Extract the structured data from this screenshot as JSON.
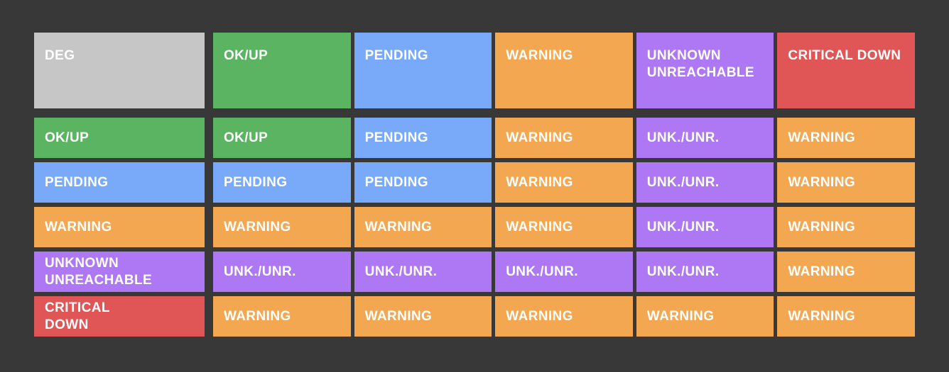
{
  "colors": {
    "background": "#383838",
    "deg_header": "#c6c6c6",
    "ok_up": "#5bb461",
    "pending": "#79aafa",
    "warning": "#f4a751",
    "unknown_unreachable": "#ae78f5",
    "critical_down": "#e05555",
    "text": "#ffffff"
  },
  "matrix": {
    "corner": {
      "label": "DEG",
      "state": "deg"
    },
    "column_headers": [
      {
        "label": "OK/UP",
        "state": "ok"
      },
      {
        "label": "PENDING",
        "state": "pending"
      },
      {
        "label": "WARNING",
        "state": "warning"
      },
      {
        "label": "UNKNOWN\nUNREACHABLE",
        "state": "unknown"
      },
      {
        "label": "CRITICAL DOWN",
        "state": "critical"
      }
    ],
    "rows": [
      {
        "header": {
          "label": "OK/UP",
          "state": "ok"
        },
        "cells": [
          {
            "label": "OK/UP",
            "state": "ok"
          },
          {
            "label": "PENDING",
            "state": "pending"
          },
          {
            "label": "WARNING",
            "state": "warning"
          },
          {
            "label": "UNK./UNR.",
            "state": "unknown"
          },
          {
            "label": "WARNING",
            "state": "warning"
          }
        ]
      },
      {
        "header": {
          "label": "PENDING",
          "state": "pending"
        },
        "cells": [
          {
            "label": "PENDING",
            "state": "pending"
          },
          {
            "label": "PENDING",
            "state": "pending"
          },
          {
            "label": "WARNING",
            "state": "warning"
          },
          {
            "label": "UNK./UNR.",
            "state": "unknown"
          },
          {
            "label": "WARNING",
            "state": "warning"
          }
        ]
      },
      {
        "header": {
          "label": "WARNING",
          "state": "warning"
        },
        "cells": [
          {
            "label": "WARNING",
            "state": "warning"
          },
          {
            "label": "WARNING",
            "state": "warning"
          },
          {
            "label": "WARNING",
            "state": "warning"
          },
          {
            "label": "UNK./UNR.",
            "state": "unknown"
          },
          {
            "label": "WARNING",
            "state": "warning"
          }
        ]
      },
      {
        "header": {
          "label": "UNKNOWN\nUNREACHABLE",
          "state": "unknown"
        },
        "cells": [
          {
            "label": "UNK./UNR.",
            "state": "unknown"
          },
          {
            "label": "UNK./UNR.",
            "state": "unknown"
          },
          {
            "label": "UNK./UNR.",
            "state": "unknown"
          },
          {
            "label": "UNK./UNR.",
            "state": "unknown"
          },
          {
            "label": "WARNING",
            "state": "warning"
          }
        ]
      },
      {
        "header": {
          "label": "CRITICAL\nDOWN",
          "state": "critical"
        },
        "cells": [
          {
            "label": "WARNING",
            "state": "warning"
          },
          {
            "label": "WARNING",
            "state": "warning"
          },
          {
            "label": "WARNING",
            "state": "warning"
          },
          {
            "label": "WARNING",
            "state": "warning"
          },
          {
            "label": "WARNING",
            "state": "warning"
          }
        ]
      }
    ]
  }
}
